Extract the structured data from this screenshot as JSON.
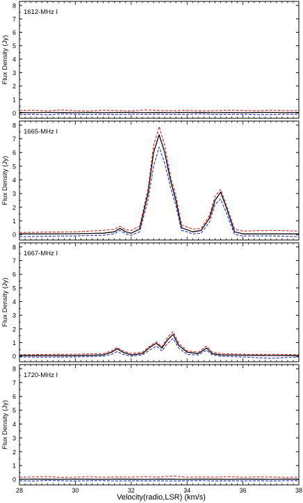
{
  "figure": {
    "xlabel": "Velocity(radio,LSR) (km/s)",
    "ylabel": "Flux Density (Jy)",
    "xlim": [
      28,
      38
    ],
    "xticks": [
      28,
      30,
      32,
      34,
      36,
      38
    ]
  },
  "chart_data": [
    {
      "type": "line",
      "title": "1612-MHz I",
      "xlabel": "",
      "ylabel": "Flux Density (Jy)",
      "xlim": [
        28,
        38
      ],
      "ylim": [
        -0.4,
        8.3
      ],
      "yticks": [
        0,
        1,
        2,
        3,
        4,
        5,
        6,
        7,
        8
      ],
      "x": [
        28,
        28.5,
        29,
        29.5,
        30,
        30.5,
        31,
        31.5,
        32,
        32.5,
        33,
        33.5,
        34,
        34.5,
        35,
        35.5,
        36,
        36.5,
        37,
        37.5,
        38
      ],
      "series": [
        {
          "color": "#000000",
          "style": "solid",
          "values": [
            0.03,
            0.02,
            0.04,
            0.03,
            0.02,
            0.03,
            0.02,
            0.03,
            0.04,
            0.02,
            0.03,
            0.02,
            0.04,
            0.03,
            0.02,
            0.03,
            0.02,
            0.03,
            0.04,
            0.02,
            0.03
          ]
        },
        {
          "color": "#d62020",
          "style": "dashed",
          "values": [
            0.18,
            0.2,
            0.15,
            0.22,
            0.16,
            0.14,
            0.2,
            0.17,
            0.15,
            0.22,
            0.18,
            0.16,
            0.2,
            0.15,
            0.17,
            0.2,
            0.18,
            0.16,
            0.2,
            0.17,
            0.18
          ]
        },
        {
          "color": "#2030c8",
          "style": "dashed",
          "values": [
            -0.12,
            -0.1,
            -0.14,
            -0.08,
            -0.1,
            -0.12,
            -0.1,
            -0.13,
            -0.09,
            -0.11,
            -0.1,
            -0.12,
            -0.1,
            -0.08,
            -0.12,
            -0.11,
            -0.1,
            -0.13,
            -0.12,
            -0.1,
            -0.11
          ]
        }
      ]
    },
    {
      "type": "line",
      "title": "1665-MHz I",
      "xlabel": "",
      "ylabel": "Flux Density (Jy)",
      "xlim": [
        28,
        38
      ],
      "ylim": [
        -0.4,
        8.3
      ],
      "yticks": [
        0,
        1,
        2,
        3,
        4,
        5,
        6,
        7,
        8
      ],
      "x": [
        28,
        29,
        30,
        31,
        31.4,
        31.6,
        31.8,
        32.0,
        32.3,
        32.6,
        32.8,
        33.0,
        33.2,
        33.4,
        33.6,
        33.8,
        34.0,
        34.2,
        34.5,
        34.8,
        35.0,
        35.2,
        35.4,
        35.7,
        36,
        37,
        38
      ],
      "series": [
        {
          "color": "#000000",
          "style": "solid",
          "values": [
            0.05,
            0.05,
            0.06,
            0.1,
            0.2,
            0.45,
            0.2,
            0.1,
            0.4,
            3.0,
            6.0,
            7.3,
            6.0,
            4.0,
            2.5,
            0.5,
            0.35,
            0.2,
            0.3,
            1.2,
            2.5,
            3.1,
            2.0,
            0.2,
            0.05,
            0.05,
            0.05
          ]
        },
        {
          "color": "#d62020",
          "style": "dashed",
          "values": [
            0.15,
            0.18,
            0.2,
            0.3,
            0.4,
            0.6,
            0.35,
            0.3,
            0.6,
            3.3,
            6.5,
            7.9,
            6.5,
            4.3,
            2.8,
            0.7,
            0.55,
            0.4,
            0.45,
            1.4,
            2.8,
            3.3,
            2.2,
            0.4,
            0.25,
            0.3,
            0.25
          ]
        },
        {
          "color": "#2030c8",
          "style": "dashed",
          "values": [
            -0.15,
            -0.12,
            -0.1,
            -0.05,
            0.05,
            0.3,
            0.05,
            -0.05,
            0.2,
            2.5,
            5.0,
            6.4,
            5.2,
            3.5,
            2.1,
            0.3,
            0.2,
            0.05,
            0.1,
            0.9,
            2.2,
            2.6,
            1.6,
            0.0,
            -0.1,
            -0.1,
            -0.15
          ]
        }
      ]
    },
    {
      "type": "line",
      "title": "1667-MHz I",
      "xlabel": "",
      "ylabel": "Flux Density (Jy)",
      "xlim": [
        28,
        38
      ],
      "ylim": [
        -0.4,
        8.3
      ],
      "yticks": [
        0,
        1,
        2,
        3,
        4,
        5,
        6,
        7,
        8
      ],
      "x": [
        28,
        29,
        30,
        31,
        31.3,
        31.5,
        31.7,
        32.0,
        32.4,
        32.7,
        32.9,
        33.1,
        33.3,
        33.5,
        33.7,
        34.0,
        34.4,
        34.7,
        34.9,
        35.2,
        36,
        37,
        38
      ],
      "series": [
        {
          "color": "#000000",
          "style": "solid",
          "values": [
            0.05,
            0.05,
            0.05,
            0.1,
            0.3,
            0.55,
            0.3,
            0.1,
            0.2,
            0.7,
            0.95,
            0.6,
            1.2,
            1.6,
            0.8,
            0.3,
            0.2,
            0.6,
            0.2,
            0.1,
            0.08,
            0.06,
            0.05
          ]
        },
        {
          "color": "#d62020",
          "style": "dashed",
          "values": [
            0.12,
            0.14,
            0.15,
            0.2,
            0.4,
            0.65,
            0.4,
            0.2,
            0.3,
            0.8,
            1.05,
            0.7,
            1.4,
            1.8,
            0.95,
            0.4,
            0.3,
            0.75,
            0.3,
            0.2,
            0.15,
            0.14,
            0.12
          ]
        },
        {
          "color": "#2030c8",
          "style": "dashed",
          "values": [
            -0.05,
            -0.06,
            -0.05,
            0.0,
            0.15,
            0.35,
            0.15,
            0.0,
            0.1,
            0.5,
            0.75,
            0.4,
            0.95,
            1.3,
            0.6,
            0.15,
            0.1,
            0.45,
            0.1,
            0.0,
            -0.05,
            -0.15,
            -0.05
          ]
        }
      ]
    },
    {
      "type": "line",
      "title": "1720-MHz I",
      "xlabel": "Velocity(radio,LSR) (km/s)",
      "ylabel": "Flux Density (Jy)",
      "xlim": [
        28,
        38
      ],
      "ylim": [
        -0.4,
        8.3
      ],
      "yticks": [
        0,
        1,
        2,
        3,
        4,
        5,
        6,
        7,
        8
      ],
      "x": [
        28,
        28.5,
        29,
        29.5,
        30,
        30.5,
        31,
        31.5,
        32,
        32.5,
        33,
        33.5,
        34,
        34.5,
        35,
        35.5,
        36,
        36.5,
        37,
        37.5,
        38
      ],
      "series": [
        {
          "color": "#000000",
          "style": "solid",
          "values": [
            0.0,
            0.02,
            0.01,
            0.0,
            0.02,
            0.01,
            0.0,
            0.02,
            0.01,
            0.0,
            0.02,
            0.01,
            0.0,
            0.02,
            0.01,
            0.0,
            0.02,
            0.01,
            0.0,
            0.02,
            0.01
          ]
        },
        {
          "color": "#d62020",
          "style": "dashed",
          "values": [
            0.15,
            0.18,
            0.2,
            0.14,
            0.16,
            0.2,
            0.15,
            0.18,
            0.16,
            0.2,
            0.17,
            0.25,
            0.15,
            0.18,
            0.16,
            0.2,
            0.15,
            0.18,
            0.17,
            0.15,
            0.16
          ]
        },
        {
          "color": "#2030c8",
          "style": "dashed",
          "values": [
            -0.1,
            -0.12,
            -0.08,
            -0.1,
            -0.12,
            -0.1,
            -0.09,
            -0.12,
            -0.1,
            -0.11,
            -0.1,
            -0.12,
            -0.1,
            -0.09,
            -0.12,
            -0.1,
            -0.11,
            -0.1,
            -0.12,
            -0.1,
            -0.09
          ]
        }
      ]
    }
  ]
}
